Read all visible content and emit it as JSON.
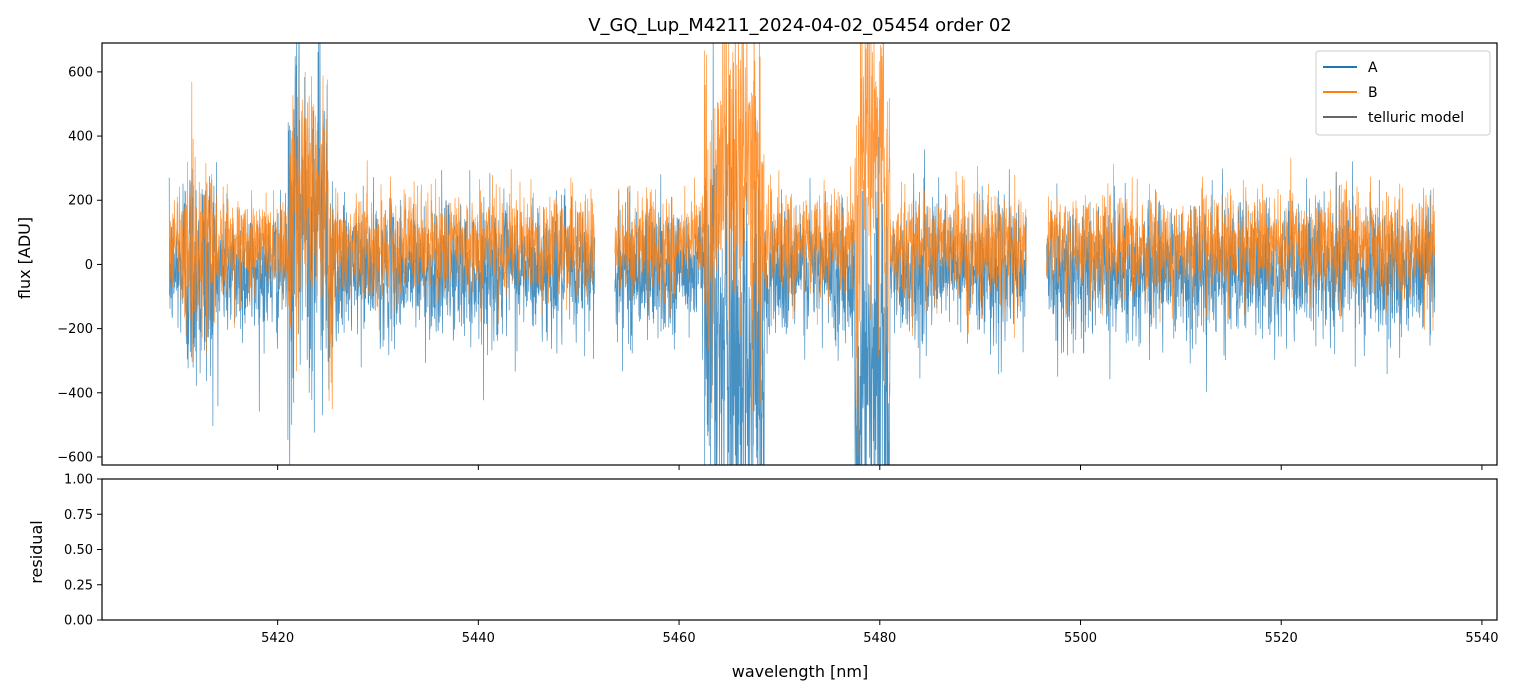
{
  "chart_data": {
    "type": "line",
    "title": "V_GQ_Lup_M4211_2024-04-02_05454  order 02",
    "xlabel": "wavelength [nm]",
    "ylabel_top": "flux [ADU]",
    "ylabel_bottom": "residual",
    "xlim": [
      5402.5,
      5541.5
    ],
    "ylim_top": [
      -625,
      690
    ],
    "ylim_bottom": [
      0,
      1
    ],
    "xticks": [
      5420,
      5440,
      5460,
      5480,
      5500,
      5520,
      5540
    ],
    "xtick_labels": [
      "5420",
      "5440",
      "5460",
      "5480",
      "5500",
      "5520",
      "5540"
    ],
    "yticks_top": [
      -600,
      -400,
      -200,
      0,
      200,
      400,
      600
    ],
    "ytick_labels_top": [
      "−600",
      "−400",
      "−200",
      "0",
      "200",
      "400",
      "600"
    ],
    "yticks_bottom": [
      0,
      0.25,
      0.5,
      0.75,
      1.0
    ],
    "ytick_labels_bottom": [
      "0.00",
      "0.25",
      "0.50",
      "0.75",
      "1.00"
    ],
    "segments": [
      [
        5409.2,
        5451.6
      ],
      [
        5453.6,
        5494.6
      ],
      [
        5496.6,
        5535.3
      ]
    ],
    "series": [
      {
        "name": "A",
        "color": "#1f77b4",
        "noise_std": 190,
        "mean": -20
      },
      {
        "name": "B",
        "color": "#ff7f0e",
        "noise_std": 150,
        "mean": 60
      },
      {
        "name": "telluric model",
        "color": "#666666"
      }
    ],
    "legend": {
      "position": "top-right",
      "entries": [
        "A",
        "B",
        "telluric model"
      ]
    },
    "residual_series": []
  }
}
